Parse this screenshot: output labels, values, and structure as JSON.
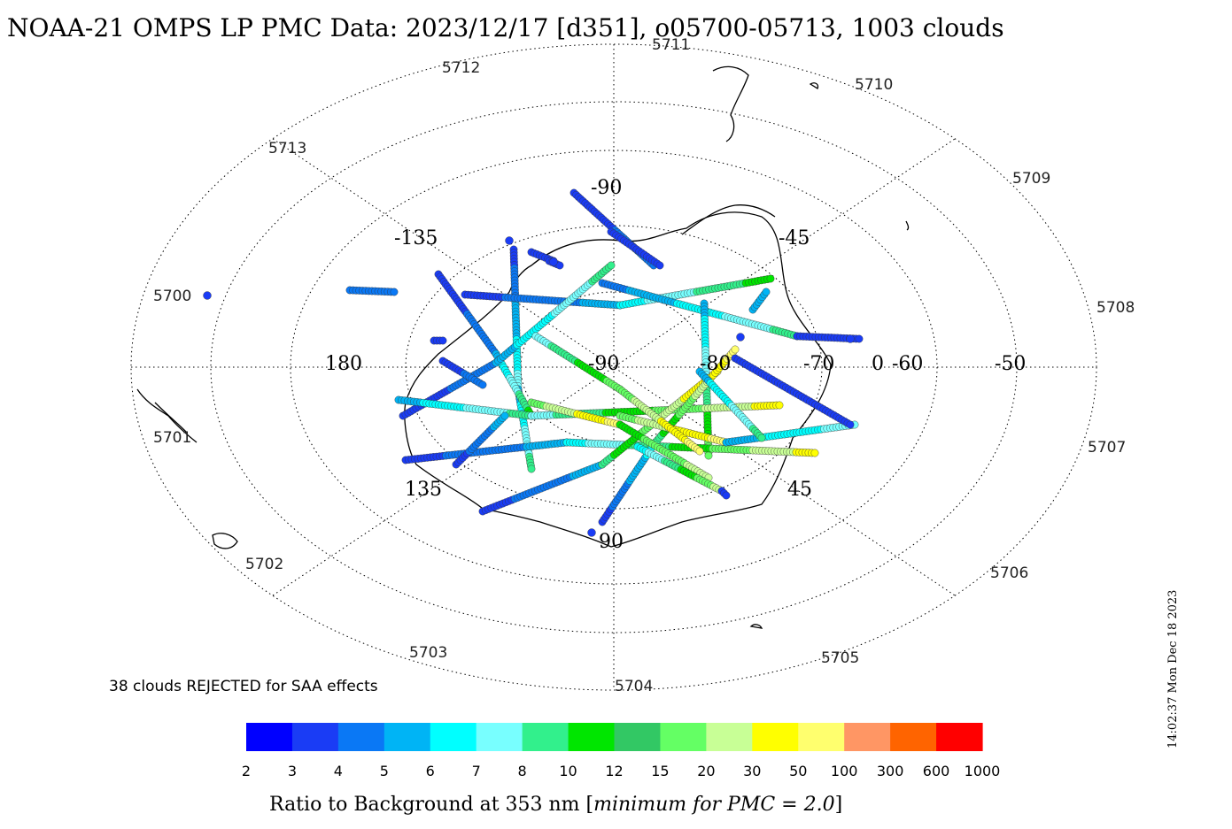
{
  "title": "NOAA-21 OMPS LP PMC Data: 2023/12/17 [d351], o05700-05713, 1003 clouds",
  "orbit_labels": [
    "5700",
    "5701",
    "5702",
    "5703",
    "5704",
    "5705",
    "5706",
    "5707",
    "5708",
    "5709",
    "5710",
    "5711",
    "5712",
    "5713"
  ],
  "longitude_labels": [
    "-90",
    "-45",
    "180",
    "0",
    "135",
    "45",
    "90",
    "-135"
  ],
  "latitude_labels": [
    "-90",
    "-80",
    "-70",
    "-60",
    "-50"
  ],
  "rejected_note": "38 clouds REJECTED for SAA effects",
  "colorbar": {
    "ticks": [
      "2",
      "3",
      "4",
      "5",
      "6",
      "7",
      "8",
      "10",
      "12",
      "15",
      "20",
      "30",
      "50",
      "100",
      "300",
      "600",
      "1000"
    ],
    "colors": [
      "#0000ff",
      "#1a3cf5",
      "#0a78f5",
      "#00b4f5",
      "#00ffff",
      "#78ffff",
      "#32f08c",
      "#00e600",
      "#32c864",
      "#64ff64",
      "#c8ff96",
      "#ffff00",
      "#ffff6e",
      "#ff9664",
      "#ff6400",
      "#ff0000"
    ],
    "title_main": "Ratio to Background at 353 nm [",
    "title_italic": "minimum for PMC = 2.0",
    "title_end": "]"
  },
  "timestamp": "14:02:37 Mon Dec 18 2023",
  "colors": {
    "grid": "#000000",
    "coast": "#000000"
  }
}
